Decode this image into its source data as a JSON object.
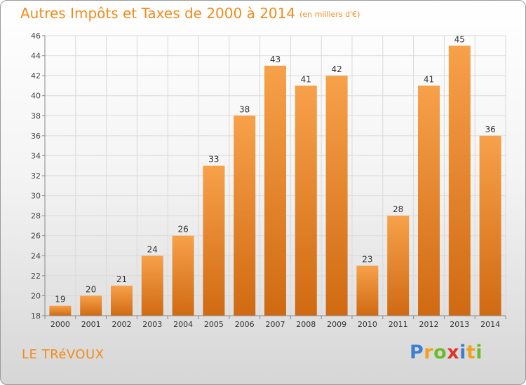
{
  "header": {
    "title": "Autres Impôts et Taxes de 2000 à 2014",
    "unit": "(en milliers d'€)"
  },
  "footer": {
    "city": "LE TRéVOUX",
    "logo_letters": [
      "P",
      "r",
      "o",
      "x",
      "i",
      "t",
      "i"
    ],
    "logo_colors": [
      "#3b7fd0",
      "#f0a21c",
      "#6dbb2a",
      "#e0342b",
      "#3b7fd0",
      "#f0a21c",
      "#6dbb2a"
    ]
  },
  "colors": {
    "title": "#f28a1a",
    "bar_top": "#f7a14a",
    "bar_bottom": "#d06a12",
    "grid": "#d9d9d9",
    "axis": "#888888"
  },
  "chart_data": {
    "type": "bar",
    "title": "Autres Impôts et Taxes de 2000 à 2014",
    "subtitle": "(en milliers d'€)",
    "xlabel": "",
    "ylabel": "",
    "categories": [
      "2000",
      "2001",
      "2002",
      "2003",
      "2004",
      "2005",
      "2006",
      "2007",
      "2008",
      "2009",
      "2010",
      "2011",
      "2012",
      "2013",
      "2014"
    ],
    "values": [
      19,
      20,
      21,
      24,
      26,
      33,
      38,
      43,
      41,
      42,
      23,
      28,
      41,
      45,
      36
    ],
    "ylim": [
      18,
      46
    ],
    "yticks": [
      18,
      20,
      22,
      24,
      26,
      28,
      30,
      32,
      34,
      36,
      38,
      40,
      42,
      44,
      46
    ],
    "grid": true,
    "data_labels": true
  }
}
